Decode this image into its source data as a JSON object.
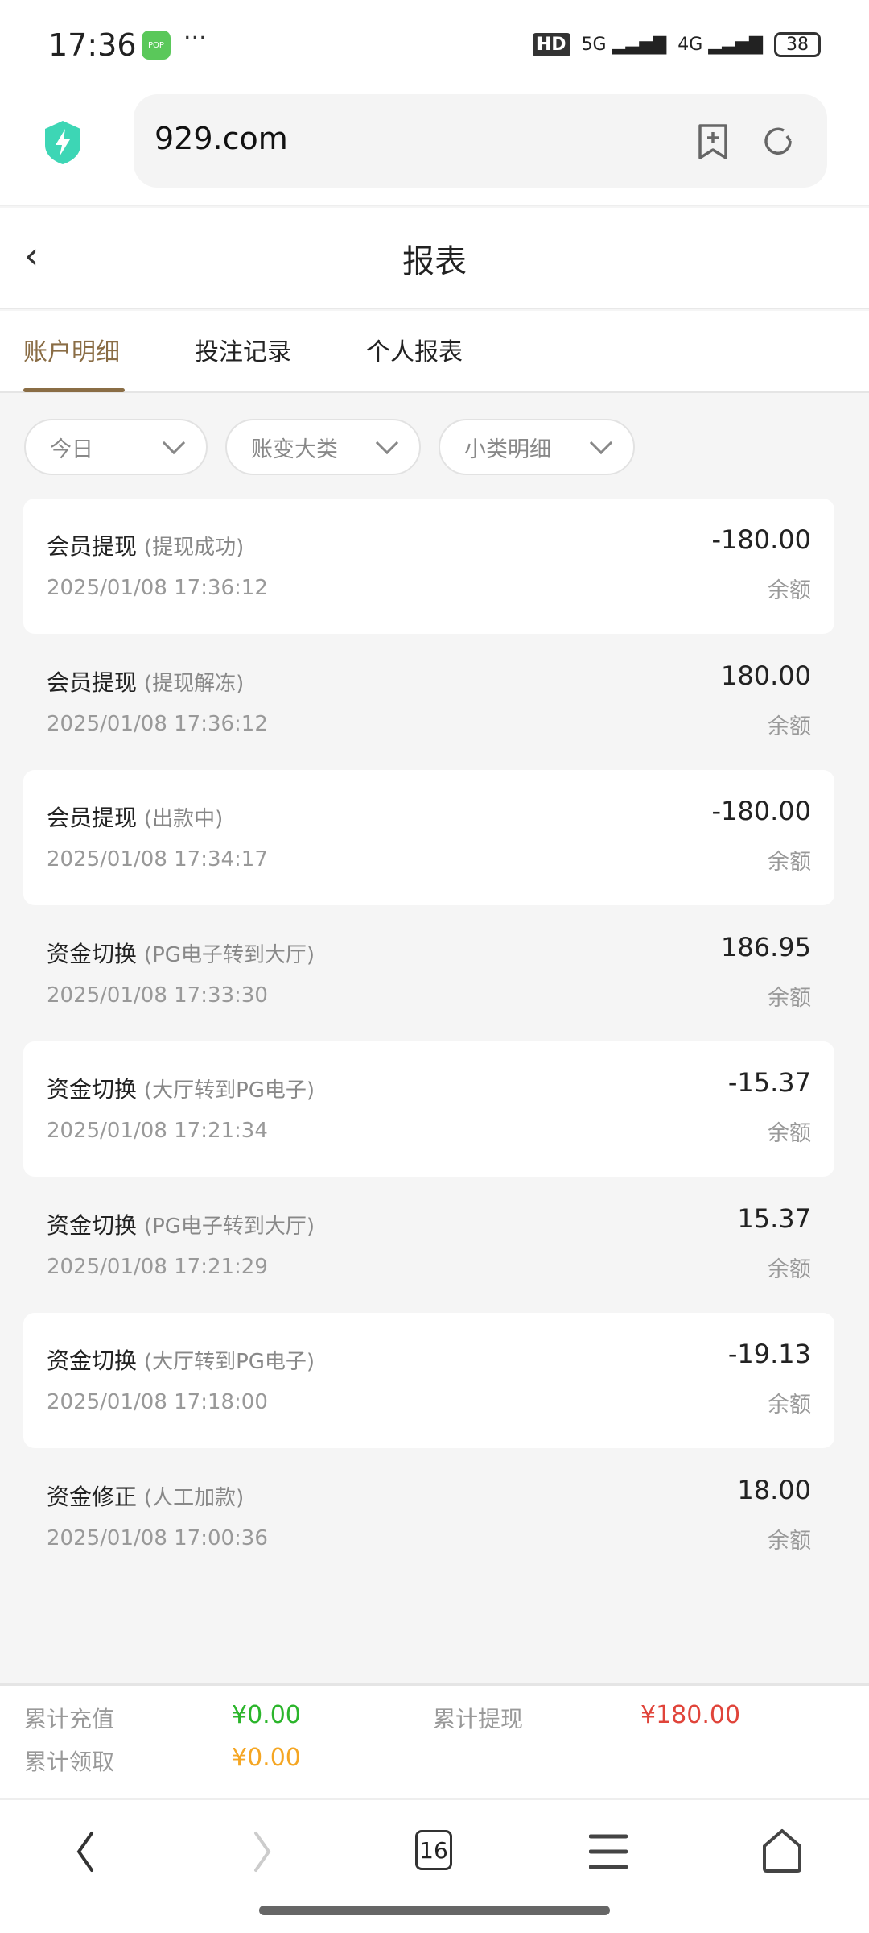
{
  "status_bar": {
    "time": "17:36",
    "notif_icon": "POP",
    "more": "···",
    "hd": "HD",
    "net1": "5G",
    "net2": "4G",
    "battery": "38"
  },
  "browser": {
    "url": "929.com"
  },
  "header": {
    "back": "‹",
    "title": "报表"
  },
  "tabs": [
    {
      "label": "账户明细",
      "active": true
    },
    {
      "label": "投注记录"
    },
    {
      "label": "个人报表"
    }
  ],
  "filters": [
    {
      "label": "今日"
    },
    {
      "label": "账变大类"
    },
    {
      "label": "小类明细"
    }
  ],
  "records": [
    {
      "type": "会员提现",
      "sub": "(提现成功)",
      "time": "2025/01/08 17:36:12",
      "amount": "-180.00",
      "balance_label": "余额"
    },
    {
      "type": "会员提现",
      "sub": "(提现解冻)",
      "time": "2025/01/08 17:36:12",
      "amount": "180.00",
      "balance_label": "余额"
    },
    {
      "type": "会员提现",
      "sub": "(出款中)",
      "time": "2025/01/08 17:34:17",
      "amount": "-180.00",
      "balance_label": "余额"
    },
    {
      "type": "资金切换",
      "sub": "(PG电子转到大厅)",
      "time": "2025/01/08 17:33:30",
      "amount": "186.95",
      "balance_label": "余额"
    },
    {
      "type": "资金切换",
      "sub": "(大厅转到PG电子)",
      "time": "2025/01/08 17:21:34",
      "amount": "-15.37",
      "balance_label": "余额"
    },
    {
      "type": "资金切换",
      "sub": "(PG电子转到大厅)",
      "time": "2025/01/08 17:21:29",
      "amount": "15.37",
      "balance_label": "余额"
    },
    {
      "type": "资金切换",
      "sub": "(大厅转到PG电子)",
      "time": "2025/01/08 17:18:00",
      "amount": "-19.13",
      "balance_label": "余额"
    },
    {
      "type": "资金修正",
      "sub": "(人工加款)",
      "time": "2025/01/08 17:00:36",
      "amount": "18.00",
      "balance_label": "余额"
    }
  ],
  "summary": {
    "recharge_label": "累计充值",
    "recharge": "¥0.00",
    "withdraw_label": "累计提现",
    "withdraw": "¥180.00",
    "claim_label": "累计领取",
    "claim": "¥0.00"
  },
  "colors": {
    "accent": "#8a6d45",
    "green": "#2bb52b",
    "red": "#e0443a",
    "orange": "#f5a623"
  },
  "bottom_nav": {
    "tab_count": "16"
  }
}
